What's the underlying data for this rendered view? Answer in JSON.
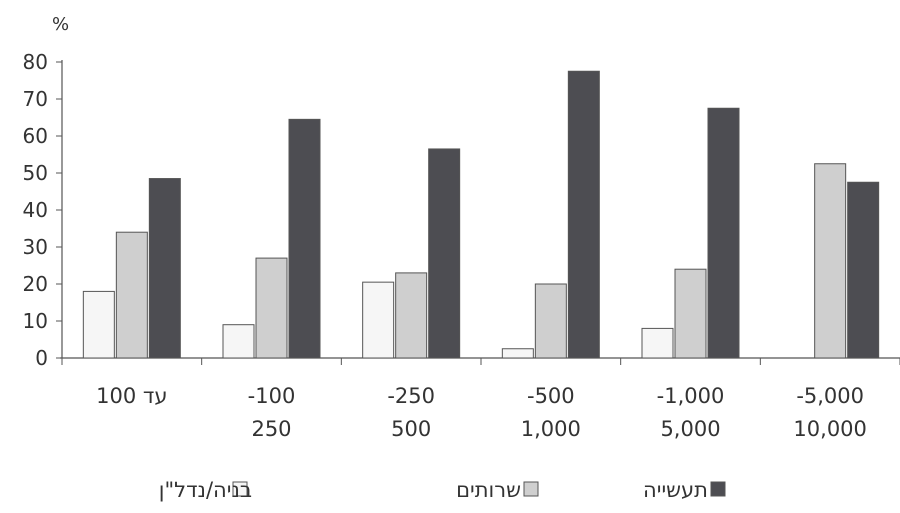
{
  "chart_data": {
    "type": "bar",
    "ylabel": "%",
    "ylim": [
      0,
      80
    ],
    "yticks": [
      0,
      10,
      20,
      30,
      40,
      50,
      60,
      70,
      80
    ],
    "categories": [
      [
        "עד 100"
      ],
      [
        "100-",
        "250"
      ],
      [
        "250-",
        "500"
      ],
      [
        "500-",
        "1,000"
      ],
      [
        "1,000-",
        "5,000"
      ],
      [
        "5,000-",
        "10,000"
      ]
    ],
    "series": [
      {
        "name": "בניה/נדל\"ן",
        "color": "#f6f6f6",
        "values": [
          18,
          9,
          20.5,
          2.5,
          8,
          0
        ]
      },
      {
        "name": "שרותים",
        "color": "#cfcfcf",
        "values": [
          34,
          27,
          23,
          20,
          24,
          52.5
        ]
      },
      {
        "name": "תעשייה",
        "color": "#4d4d52",
        "values": [
          48.5,
          64.5,
          56.5,
          77.5,
          67.5,
          47.5
        ]
      }
    ],
    "legend_order": [
      2,
      1,
      0
    ],
    "legend_position": "bottom",
    "grid": false
  }
}
